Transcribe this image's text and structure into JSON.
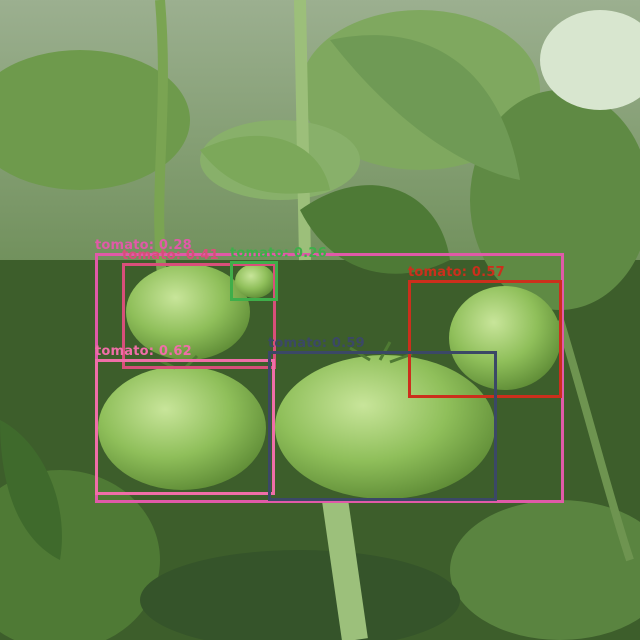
{
  "detections": [
    {
      "label": "tomato: 0.28",
      "color": "#e05aa8"
    },
    {
      "label": "tomato: 0.41",
      "color": "#d84f7a"
    },
    {
      "label": "tomato: 0.26",
      "color": "#3fae4a"
    },
    {
      "label": "tomato: 0.57",
      "color": "#cc2f1c"
    },
    {
      "label": "tomato: 0.62",
      "color": "#f06ea8"
    },
    {
      "label": "tomato: 0.59",
      "color": "#3b4866"
    }
  ]
}
